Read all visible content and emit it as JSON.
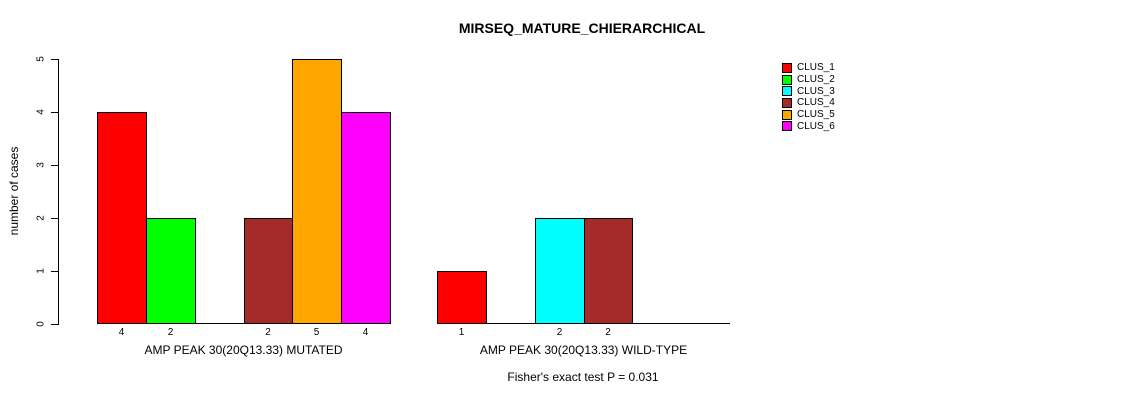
{
  "chart_data": {
    "type": "bar",
    "title": "MIRSEQ_MATURE_CHIERARCHICAL",
    "ylabel": "number of cases",
    "xlabel": "",
    "ylim": [
      0,
      5
    ],
    "yticks": [
      "0",
      "1",
      "2",
      "3",
      "4",
      "5"
    ],
    "categories": [
      "CLUS_1",
      "CLUS_2",
      "CLUS_3",
      "CLUS_4",
      "CLUS_5",
      "CLUS_6"
    ],
    "colors": [
      "#FF0000",
      "#00FF00",
      "#00FFFF",
      "#A52A2A",
      "#FFA500",
      "#FF00FF"
    ],
    "series": [
      {
        "name": "AMP PEAK 30(20Q13.33) MUTATED",
        "values": [
          4,
          2,
          0,
          2,
          5,
          4
        ]
      },
      {
        "name": "AMP PEAK 30(20Q13.33) WILD-TYPE",
        "values": [
          1,
          0,
          2,
          2,
          0,
          0
        ]
      }
    ],
    "bar_value_labels": [
      [
        "4",
        "2",
        "",
        "2",
        "5",
        "4"
      ],
      [
        "1",
        "",
        "2",
        "2",
        "",
        ""
      ]
    ],
    "legend_entries": [
      "CLUS_1",
      "CLUS_2",
      "CLUS_3",
      "CLUS_4",
      "CLUS_5",
      "CLUS_6"
    ],
    "legend_position": "right",
    "grid": false,
    "annotation": "Fisher's exact test P = 0.031"
  }
}
